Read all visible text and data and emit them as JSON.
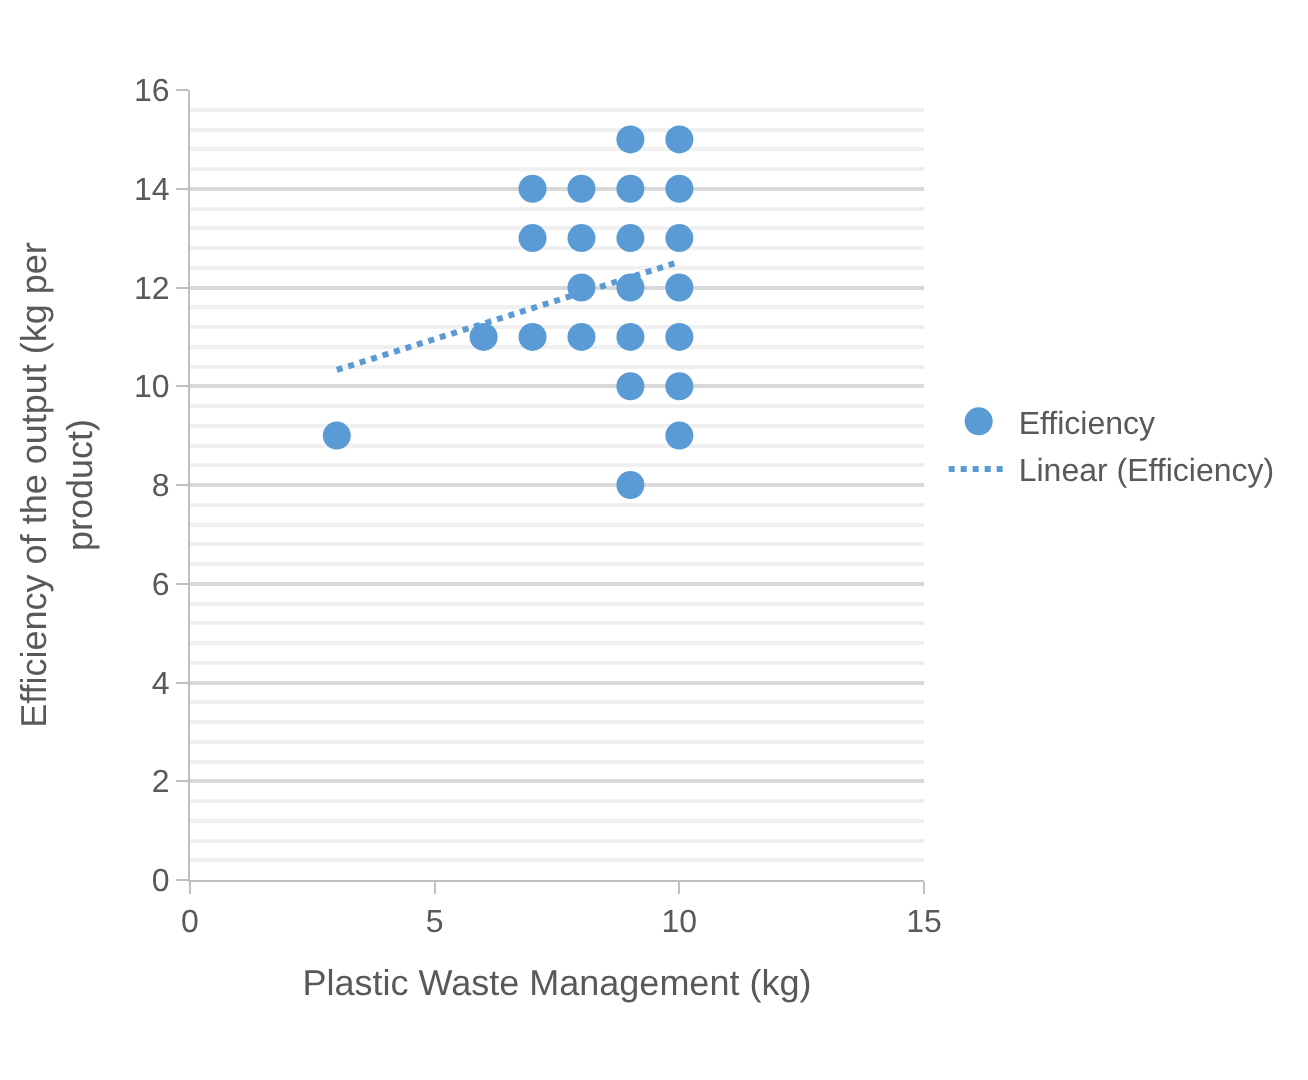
{
  "chart_data": {
    "type": "scatter",
    "xlabel": "Plastic Waste Management (kg)",
    "ylabel": "Efficiency of the output (kg per product)",
    "xlim": [
      0,
      15
    ],
    "xticks": [
      0,
      5,
      10,
      15
    ],
    "ylim": [
      0,
      16
    ],
    "yticks": [
      0,
      2,
      4,
      6,
      8,
      10,
      12,
      14,
      16
    ],
    "grid": "y",
    "legend": "right",
    "series": [
      {
        "name": "Efficiency",
        "marker": "circle",
        "color": "#5b9bd5",
        "x": [
          3,
          6,
          7,
          7,
          7,
          8,
          8,
          8,
          8,
          9,
          9,
          9,
          9,
          9,
          9,
          9,
          10,
          10,
          10,
          10,
          10,
          10,
          10
        ],
        "values": [
          9,
          11,
          11,
          13,
          14,
          11,
          12,
          13,
          14,
          8,
          10,
          11,
          12,
          13,
          14,
          15,
          9,
          10,
          11,
          12,
          13,
          14,
          15
        ]
      },
      {
        "name": "Linear (Efficiency)",
        "type": "line",
        "color": "#5b9bd5",
        "line_style": "dotted",
        "x": [
          3,
          10
        ],
        "values": [
          10.33,
          12.52
        ]
      }
    ]
  }
}
